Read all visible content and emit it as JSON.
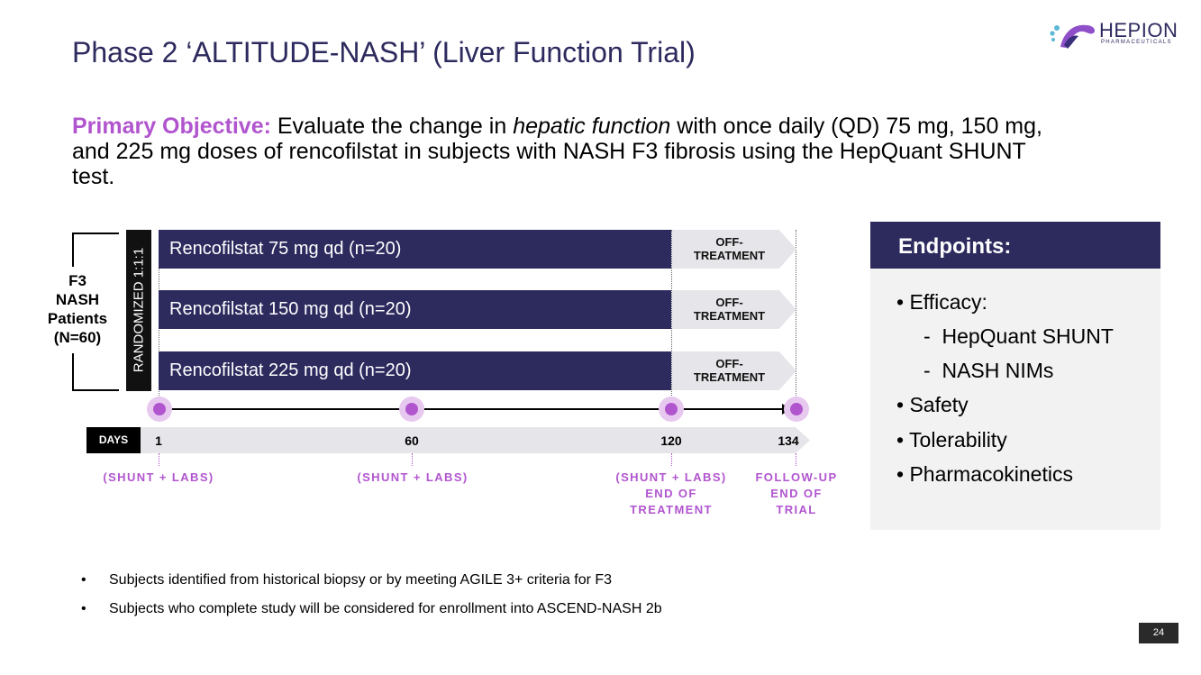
{
  "header": {
    "title": "Phase 2 ‘ALTITUDE-NASH’ (Liver Function Trial)",
    "logo": {
      "word": "HEPION",
      "sub": "PHARMACEUTICALS"
    }
  },
  "objective": {
    "label": "Primary Objective:",
    "text_pre": " Evaluate the change in ",
    "text_italic": "hepatic function",
    "text_post": " with once daily (QD) 75 mg, 150 mg, and 225 mg doses of rencofilstat in subjects with NASH F3 fibrosis using the HepQuant SHUNT test."
  },
  "design": {
    "patients": [
      "F3",
      "NASH",
      "Patients",
      "(N=60)"
    ],
    "randomized": "RANDOMIZED 1:1:1",
    "arms": [
      {
        "label": "Rencofilstat 75 mg qd (n=20)"
      },
      {
        "label": "Rencofilstat 150 mg qd (n=20)"
      },
      {
        "label": "Rencofilstat 225 mg qd (n=20)"
      }
    ],
    "off_treatment": [
      "OFF-",
      "TREATMENT"
    ],
    "timeline": {
      "days_label": "DAYS",
      "days": [
        "1",
        "60",
        "120",
        "134"
      ],
      "notes": [
        [
          "(SHUNT + LABS)"
        ],
        [
          "(SHUNT + LABS)"
        ],
        [
          "(SHUNT + LABS)",
          "END OF",
          "TREATMENT"
        ],
        [
          "FOLLOW-UP",
          "END OF",
          "TRIAL"
        ]
      ]
    }
  },
  "endpoints": {
    "title": "Endpoints:",
    "items": [
      {
        "bullet": "•",
        "text": "Efficacy:"
      },
      {
        "bullet": "-",
        "text": "HepQuant SHUNT"
      },
      {
        "bullet": "-",
        "text": "NASH NIMs"
      },
      {
        "bullet": "•",
        "text": "Safety"
      },
      {
        "bullet": "•",
        "text": "Tolerability"
      },
      {
        "bullet": "•",
        "text": "Pharmacokinetics"
      }
    ]
  },
  "footnotes": [
    {
      "bullet": "•",
      "text": "Subjects identified from historical biopsy or by meeting AGILE 3+ criteria for F3"
    },
    {
      "bullet": "•",
      "text": "Subjects who complete study will be considered for enrollment into ASCEND-NASH 2b"
    }
  ],
  "page_number": "24",
  "colors": {
    "navy": "#2d2a5e",
    "purple": "#b155cf",
    "halo": "#e7c9ef",
    "grey": "#e6e6ea"
  }
}
